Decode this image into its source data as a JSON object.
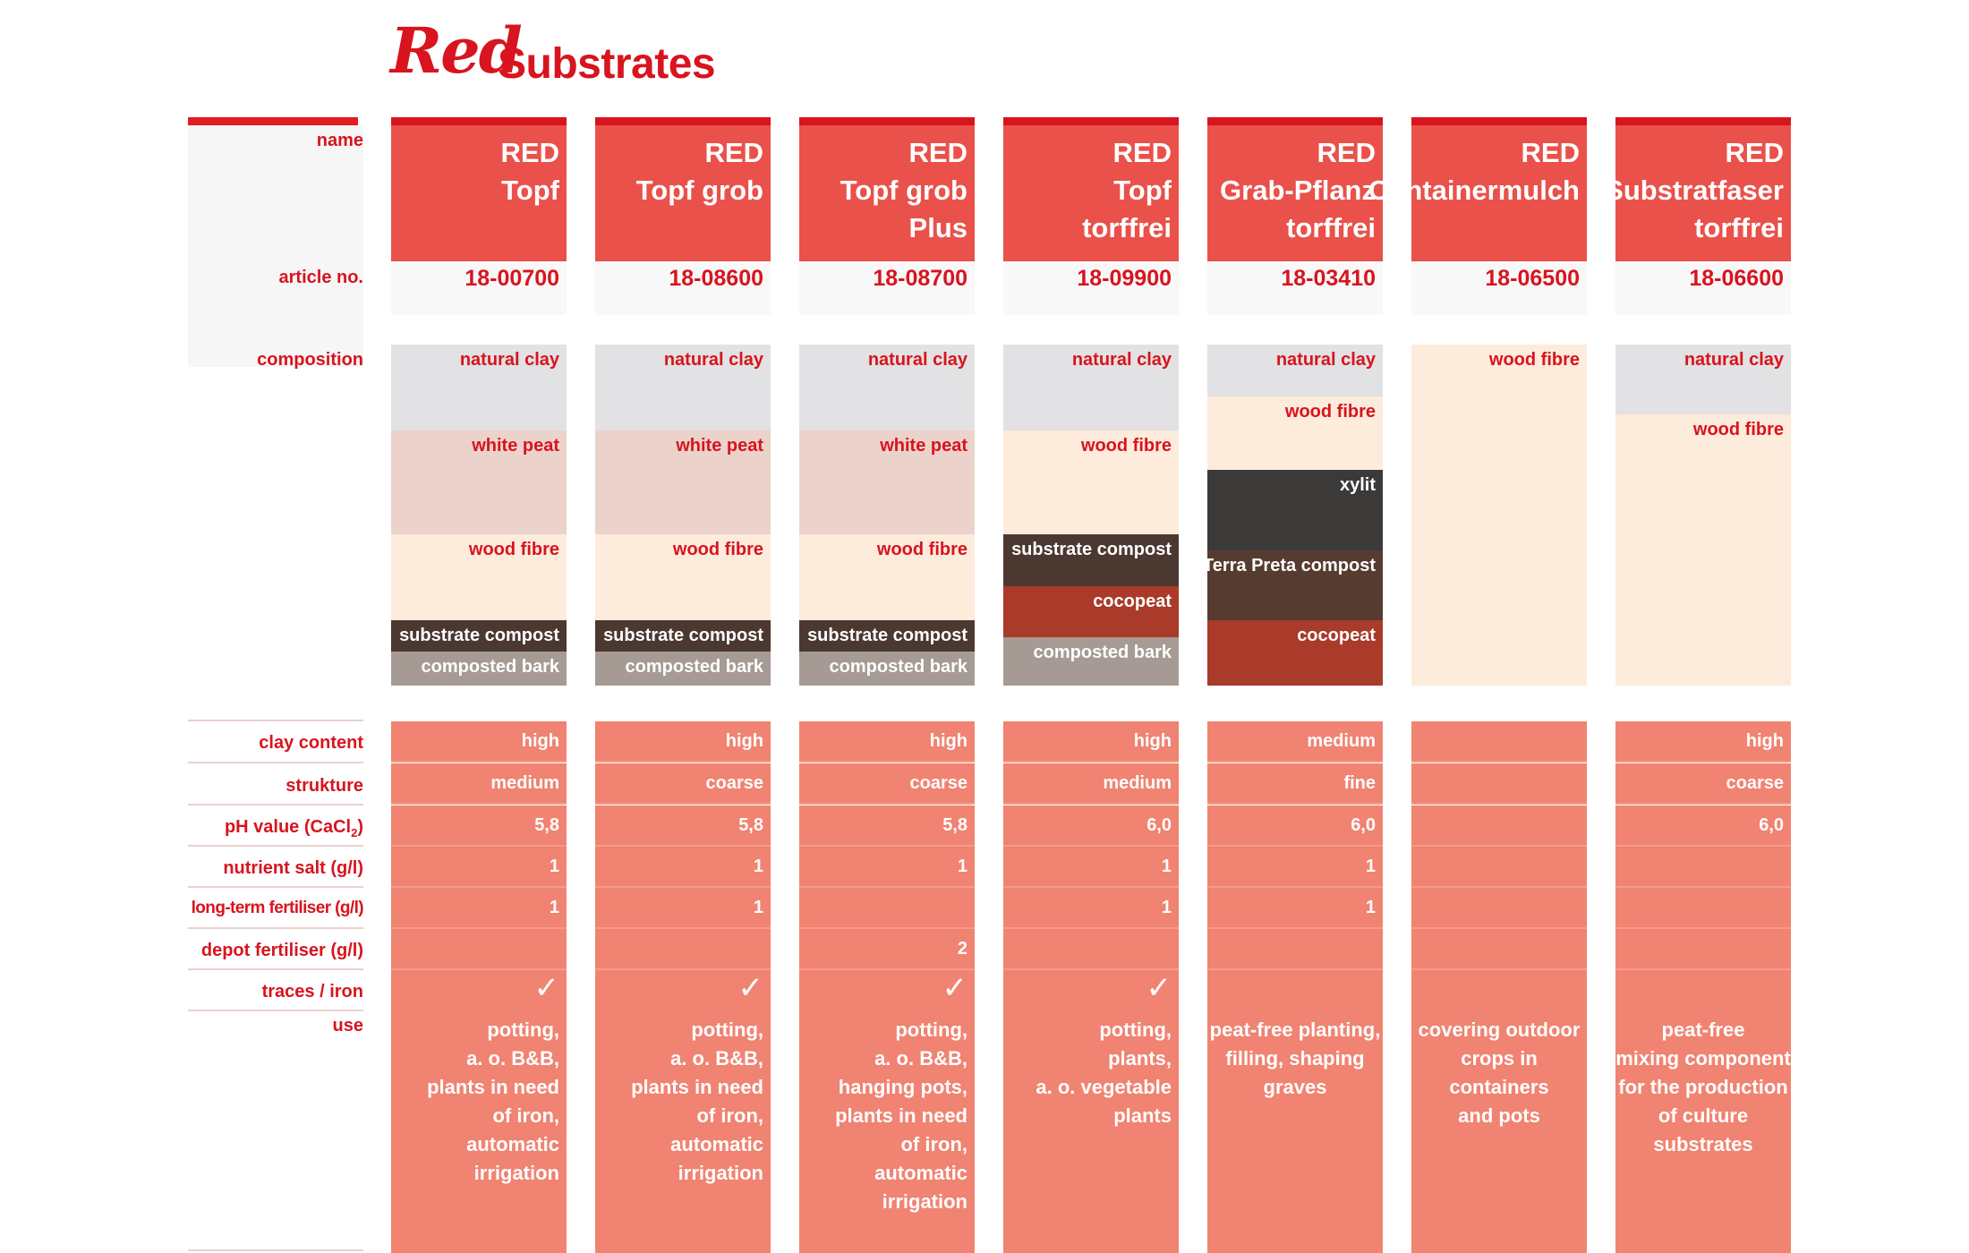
{
  "title": {
    "brand": "Red",
    "rest": "Substrates"
  },
  "labels": {
    "name": "name",
    "article": "article no.",
    "composition": "composition",
    "clay": "clay content",
    "structure": "strukture",
    "ph": "pH value  (CaCl",
    "ph_sub": "2",
    "ph_close": ")",
    "nutrient": "nutrient salt (g/l)",
    "longterm": "long-term fertiliser (g/l)",
    "depot": "depot fertiliser (g/l)",
    "traces": "traces / iron",
    "use": "use"
  },
  "products": [
    {
      "name": [
        "RED",
        "Topf"
      ],
      "article": "18-00700",
      "composition": [
        "natural clay",
        "white peat",
        "wood fibre",
        "substrate compost",
        "composted bark"
      ],
      "clay": "high",
      "structure": "medium",
      "ph": "5,8",
      "nutrient": "1",
      "longterm": "1",
      "depot": "",
      "traces": "✓",
      "use": [
        "potting,",
        "a. o. B&B,",
        "plants in need",
        "of iron,",
        "automatic irrigation"
      ]
    },
    {
      "name": [
        "RED",
        "Topf grob"
      ],
      "article": "18-08600",
      "composition": [
        "natural clay",
        "white peat",
        "wood fibre",
        "substrate compost",
        "composted bark"
      ],
      "clay": "high",
      "structure": "coarse",
      "ph": "5,8",
      "nutrient": "1",
      "longterm": "1",
      "depot": "",
      "traces": "✓",
      "use": [
        "potting,",
        "a. o. B&B,",
        "plants in need",
        "of iron,",
        "automatic irrigation"
      ]
    },
    {
      "name": [
        "RED",
        "Topf grob",
        "Plus"
      ],
      "article": "18-08700",
      "composition": [
        "natural clay",
        "white peat",
        "wood fibre",
        "substrate compost",
        "composted bark"
      ],
      "clay": "high",
      "structure": "coarse",
      "ph": "5,8",
      "nutrient": "1",
      "longterm": "",
      "depot": "2",
      "traces": "✓",
      "use": [
        "potting,",
        "a. o. B&B,",
        "hanging pots,",
        "plants in need",
        "of iron,",
        "automatic irrigation"
      ]
    },
    {
      "name": [
        "RED",
        "Topf",
        "torffrei"
      ],
      "article": "18-09900",
      "composition": [
        "natural clay",
        "wood fibre",
        "substrate compost",
        "cocopeat",
        "composted bark"
      ],
      "clay": "high",
      "structure": "medium",
      "ph": "6,0",
      "nutrient": "1",
      "longterm": "1",
      "depot": "",
      "traces": "✓",
      "use": [
        "potting,",
        "plants,",
        "a. o. vegetable",
        "plants"
      ]
    },
    {
      "name": [
        "RED",
        "Grab-Pflanz",
        "torffrei"
      ],
      "article": "18-03410",
      "composition": [
        "natural clay",
        "wood fibre",
        "xylit",
        "Terra Preta compost",
        "cocopeat"
      ],
      "clay": "medium",
      "structure": "fine",
      "ph": "6,0",
      "nutrient": "1",
      "longterm": "1",
      "depot": "",
      "traces": "",
      "use": [
        "peat-free planting,",
        "filling, shaping",
        "graves"
      ]
    },
    {
      "name": [
        "RED",
        "Containermulch"
      ],
      "article": "18-06500",
      "composition": [
        "wood fibre"
      ],
      "clay": "",
      "structure": "",
      "ph": "",
      "nutrient": "",
      "longterm": "",
      "depot": "",
      "traces": "",
      "use": [
        "covering outdoor",
        "crops in containers",
        "and pots"
      ]
    },
    {
      "name": [
        "RED",
        "Substratfaser",
        "torffrei"
      ],
      "article": "18-06600",
      "composition": [
        "natural clay",
        "wood fibre"
      ],
      "clay": "high",
      "structure": "coarse",
      "ph": "6,0",
      "nutrient": "",
      "longterm": "",
      "depot": "",
      "traces": "",
      "use": [
        "peat-free",
        "mixing component",
        "for the production",
        "of culture",
        "substrates"
      ]
    }
  ],
  "colors": {
    "brand_red": "#d8141e",
    "header_red": "#e9514a",
    "property_salmon": "#f08371",
    "natural_clay": "#e2e1e3",
    "white_peat": "#ebd3cb",
    "wood_fibre": "#fdebdc",
    "substrate_compost": "#4b3830",
    "composted_bark": "#a69a94",
    "cocopeat": "#aa3a2a",
    "xylit": "#3c3a39",
    "terra_preta": "#563c30"
  }
}
